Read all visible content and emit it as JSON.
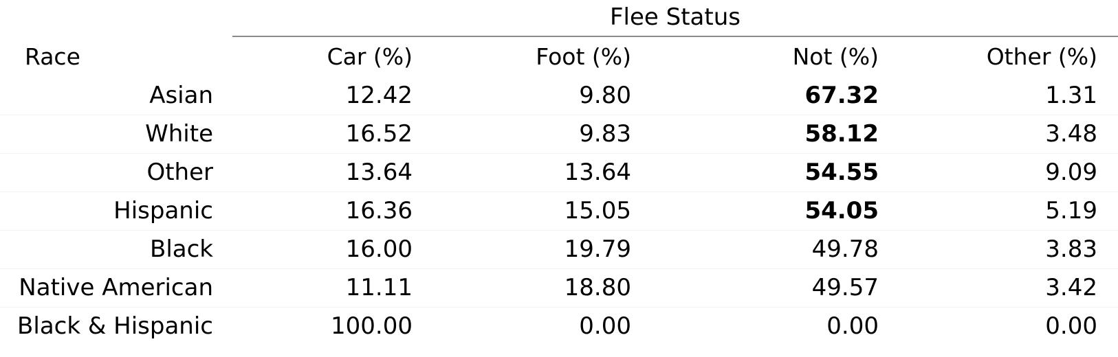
{
  "table": {
    "group_header": "Flee Status",
    "columns": {
      "race": "Race",
      "car": "Car (%)",
      "foot": "Foot (%)",
      "not": "Not (%)",
      "other": "Other (%)"
    },
    "rows": [
      {
        "race": "Asian",
        "car": "12.42",
        "foot": "9.80",
        "not": "67.32",
        "other": "1.31",
        "not_bold": true
      },
      {
        "race": "White",
        "car": "16.52",
        "foot": "9.83",
        "not": "58.12",
        "other": "3.48",
        "not_bold": true
      },
      {
        "race": "Other",
        "car": "13.64",
        "foot": "13.64",
        "not": "54.55",
        "other": "9.09",
        "not_bold": true
      },
      {
        "race": "Hispanic",
        "car": "16.36",
        "foot": "15.05",
        "not": "54.05",
        "other": "5.19",
        "not_bold": true
      },
      {
        "race": "Black",
        "car": "16.00",
        "foot": "19.79",
        "not": "49.78",
        "other": "3.83",
        "not_bold": false
      },
      {
        "race": "Native American",
        "car": "11.11",
        "foot": "18.80",
        "not": "49.57",
        "other": "3.42",
        "not_bold": false
      },
      {
        "race": "Black & Hispanic",
        "car": "100.00",
        "foot": "0.00",
        "not": "0.00",
        "other": "0.00",
        "not_bold": false
      }
    ]
  }
}
